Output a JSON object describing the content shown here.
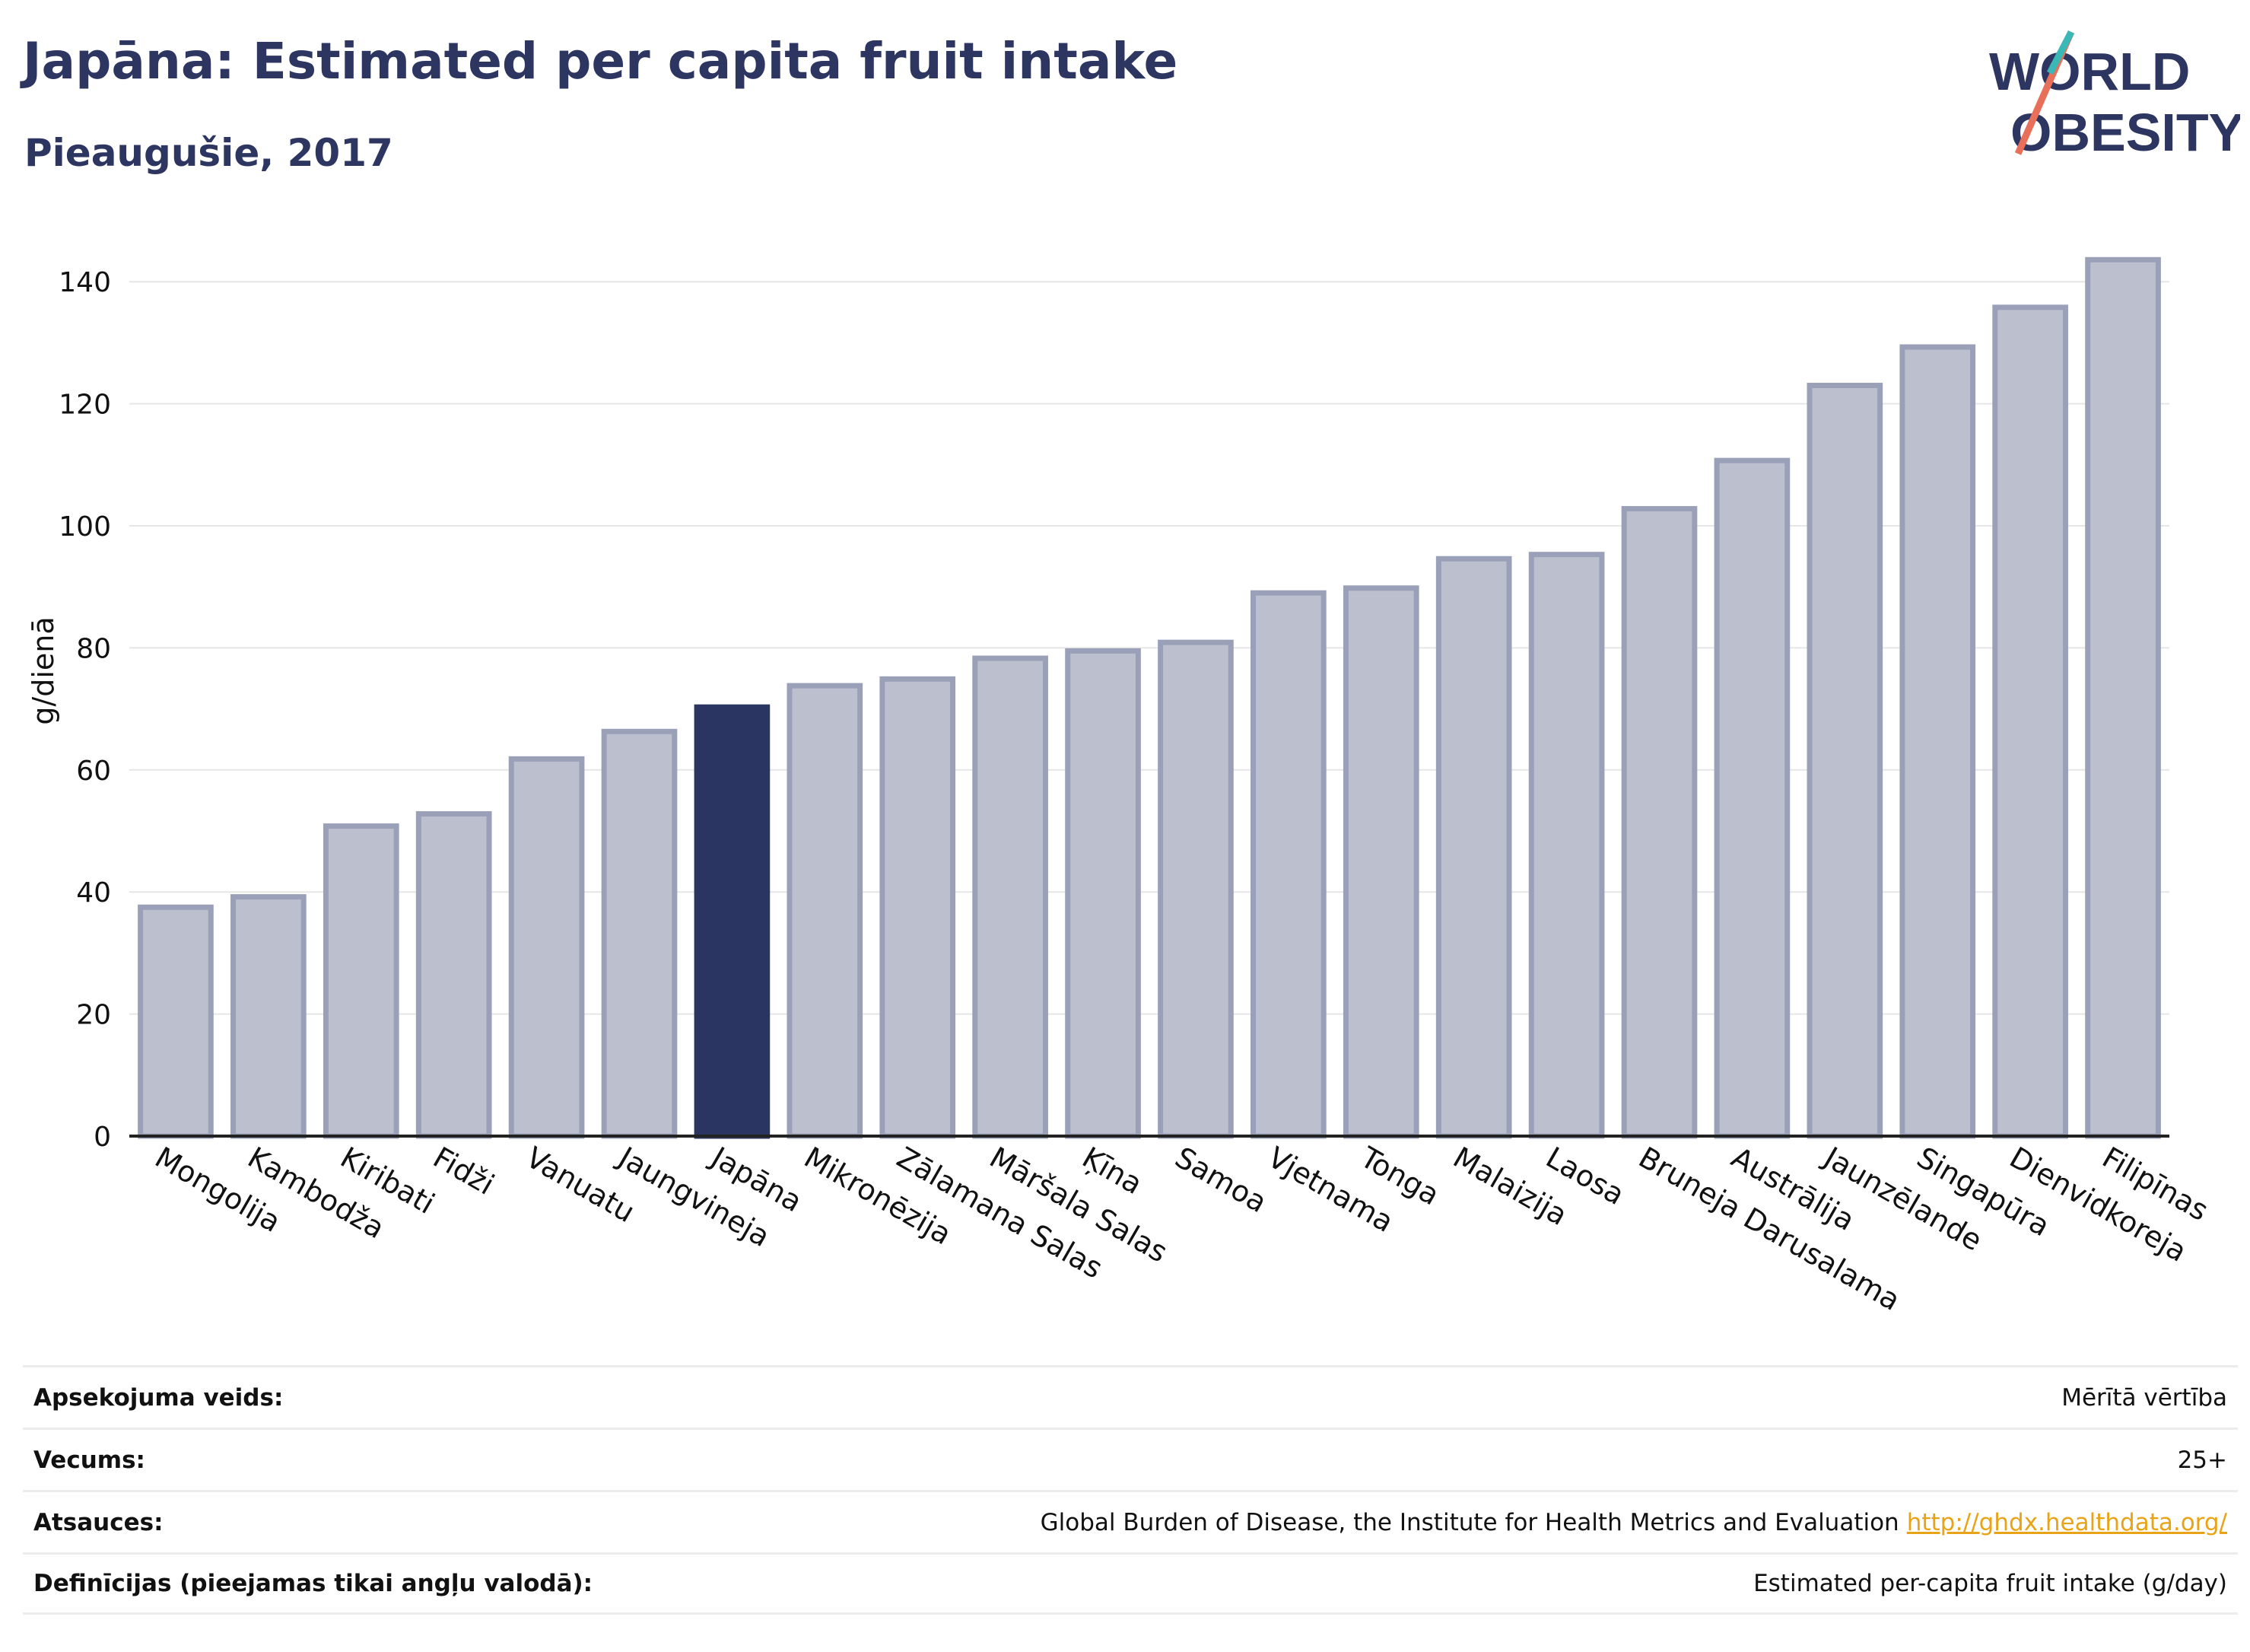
{
  "header": {
    "title": "Japāna: Estimated per capita fruit intake",
    "subtitle": "Pieaugušie, 2017"
  },
  "logo": {
    "line1": "WORLD",
    "line2": "OBESITY",
    "colors": {
      "navy": "#2d3561",
      "teal": "#3bb8b5",
      "coral": "#e8705a"
    }
  },
  "chart_data": {
    "type": "bar",
    "ylabel": "g/dienā",
    "xlabel": "",
    "ylim": [
      0,
      150
    ],
    "yticks": [
      0,
      20,
      40,
      60,
      80,
      100,
      120,
      140
    ],
    "grid": true,
    "highlight": "Japāna",
    "colors": {
      "bar": "#bcc0ce",
      "bar_border": "#9aa0b8",
      "highlight": "#2a3561"
    },
    "categories": [
      "Mongolija",
      "Kambodža",
      "Kiribati",
      "Fidži",
      "Vanuatu",
      "Jaungvineja",
      "Japāna",
      "Mikronēzija",
      "Zālamana Salas",
      "Māršala Salas",
      "Ķīna",
      "Samoa",
      "Vjetnama",
      "Tonga",
      "Malaizija",
      "Laosa",
      "Bruneja Darusalama",
      "Austrālija",
      "Jaunzēlande",
      "Singapūra",
      "Dienvidkoreja",
      "Filipīnas"
    ],
    "values": [
      37.5,
      39.2,
      50.8,
      52.8,
      61.8,
      66.3,
      70.3,
      73.8,
      74.9,
      78.3,
      79.5,
      80.9,
      89.0,
      89.8,
      94.6,
      95.3,
      102.8,
      110.7,
      123.0,
      129.3,
      135.8,
      143.6
    ]
  },
  "meta": {
    "rows": [
      {
        "label": "Apsekojuma veids:",
        "value": "Mērītā vērtība"
      },
      {
        "label": "Vecums:",
        "value": "25+"
      },
      {
        "label": "Atsauces:",
        "value": "Global Burden of Disease, the Institute for Health Metrics and Evaluation",
        "link": "http://ghdx.healthdata.org/"
      },
      {
        "label": "Definīcijas (pieejamas tikai angļu valodā):",
        "value": "Estimated per-capita fruit intake (g/day)"
      }
    ]
  }
}
